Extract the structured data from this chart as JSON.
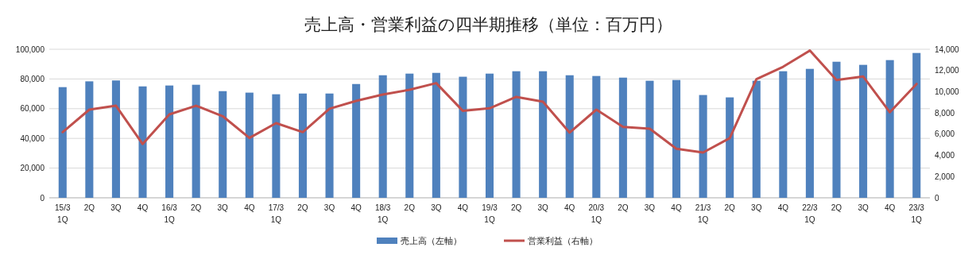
{
  "chart_data": {
    "type": "bar",
    "title": "売上高・営業利益の四半期推移（単位：百万円）",
    "categories": [
      "15/3\n1Q",
      "2Q",
      "3Q",
      "4Q",
      "16/3\n1Q",
      "2Q",
      "3Q",
      "4Q",
      "17/3\n1Q",
      "2Q",
      "3Q",
      "4Q",
      "18/3\n1Q",
      "2Q",
      "3Q",
      "4Q",
      "19/3\n1Q",
      "2Q",
      "3Q",
      "4Q",
      "20/3\n1Q",
      "2Q",
      "3Q",
      "4Q",
      "21/3\n1Q",
      "2Q",
      "3Q",
      "4Q",
      "22/3\n1Q",
      "2Q",
      "3Q",
      "4Q",
      "23/3\n1Q"
    ],
    "series": [
      {
        "name": "売上高（左軸）",
        "color": "#4f81bd",
        "values": [
          74500,
          78400,
          79000,
          75000,
          75600,
          76100,
          71800,
          70800,
          69700,
          70200,
          70200,
          76600,
          82500,
          83600,
          84100,
          81500,
          83600,
          85200,
          85200,
          82500,
          82000,
          80900,
          78800,
          79300,
          69200,
          67600,
          78800,
          85200,
          86800,
          91600,
          89500,
          92700,
          97500
        ]
      },
      {
        "name": "営業利益（右軸）",
        "type": "line",
        "axis": "y2",
        "color": "#c0504d",
        "values": [
          6190,
          8310,
          8680,
          5070,
          7860,
          8680,
          7690,
          5640,
          7040,
          6190,
          8390,
          9130,
          9730,
          10180,
          10810,
          8190,
          8440,
          9510,
          9060,
          6140,
          8310,
          6690,
          6510,
          4620,
          4270,
          5620,
          11180,
          12350,
          13880,
          11100,
          11430,
          8060,
          10730
        ]
      }
    ],
    "ylim": [
      0,
      100000
    ],
    "yticks": [
      {
        "value": 0,
        "label": "0"
      },
      {
        "value": 20000,
        "label": "20,000"
      },
      {
        "value": 40000,
        "label": "40,000"
      },
      {
        "value": 60000,
        "label": "60,000"
      },
      {
        "value": 80000,
        "label": "80,000"
      },
      {
        "value": 100000,
        "label": "100,000"
      }
    ],
    "y2lim": [
      0,
      14000
    ],
    "y2ticks": [
      {
        "value": 0,
        "label": "0"
      },
      {
        "value": 2000,
        "label": "2,000"
      },
      {
        "value": 4000,
        "label": "4,000"
      },
      {
        "value": 6000,
        "label": "6,000"
      },
      {
        "value": 8000,
        "label": "8,000"
      },
      {
        "value": 10000,
        "label": "10,000"
      },
      {
        "value": 12000,
        "label": "12,000"
      },
      {
        "value": 14000,
        "label": "14,000"
      }
    ],
    "grid": "y",
    "legend": "bottom",
    "marker": "none",
    "line_style": "solid"
  }
}
